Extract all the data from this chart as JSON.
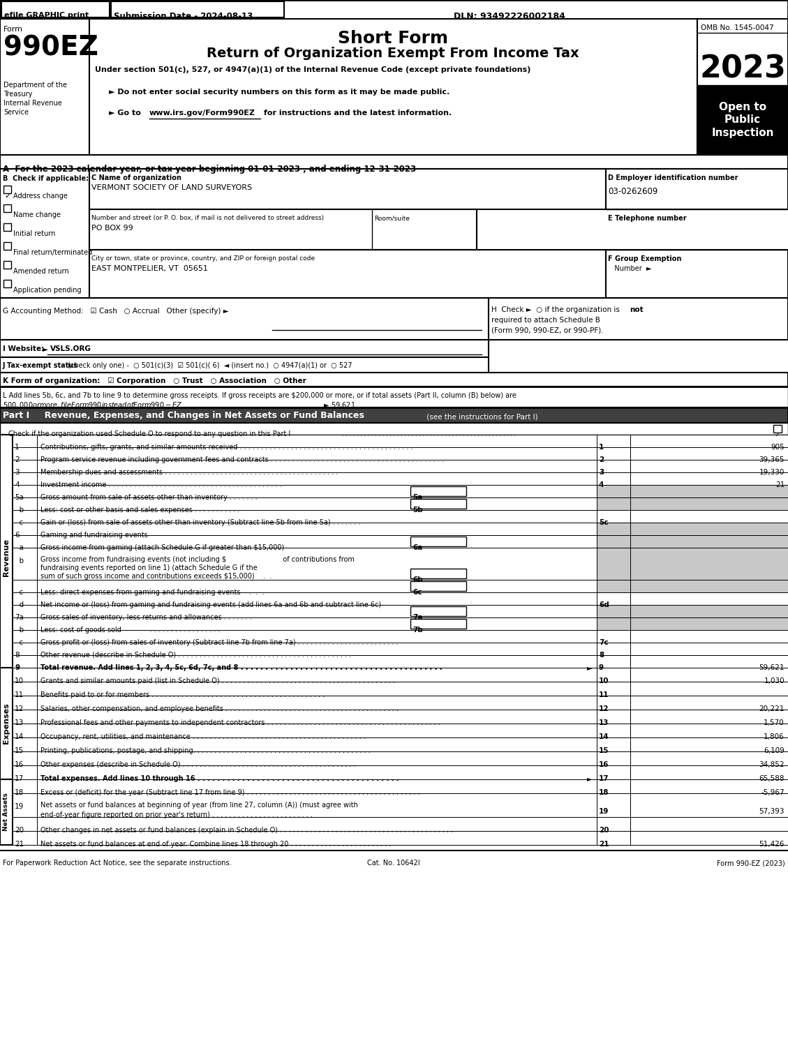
{
  "efile_text": "efile GRAPHIC print",
  "submission_date": "Submission Date - 2024-08-13",
  "dln": "DLN: 93492226002184",
  "form_label": "Form",
  "form_number": "990EZ",
  "short_form": "Short Form",
  "return_title": "Return of Organization Exempt From Income Tax",
  "under_section": "Under section 501(c), 527, or 4947(a)(1) of the Internal Revenue Code (except private foundations)",
  "dept_label": "Department of the\nTreasury\nInternal Revenue\nService",
  "omb": "OMB No. 1545-0047",
  "year": "2023",
  "open_to": "Open to\nPublic\nInspection",
  "org_name": "VERMONT SOCIETY OF LAND SURVEYORS",
  "addr_value": "PO BOX 99",
  "city_value": "EAST MONTPELIER, VT  05651",
  "ein_value": "03-0262609",
  "footer_left": "For Paperwork Reduction Act Notice, see the separate instructions.",
  "footer_center": "Cat. No. 10642I",
  "footer_right": "Form 990-EZ (2023)",
  "bg_color": "#ffffff",
  "GRAY": "#c8c8c8",
  "DARK": "#404040"
}
